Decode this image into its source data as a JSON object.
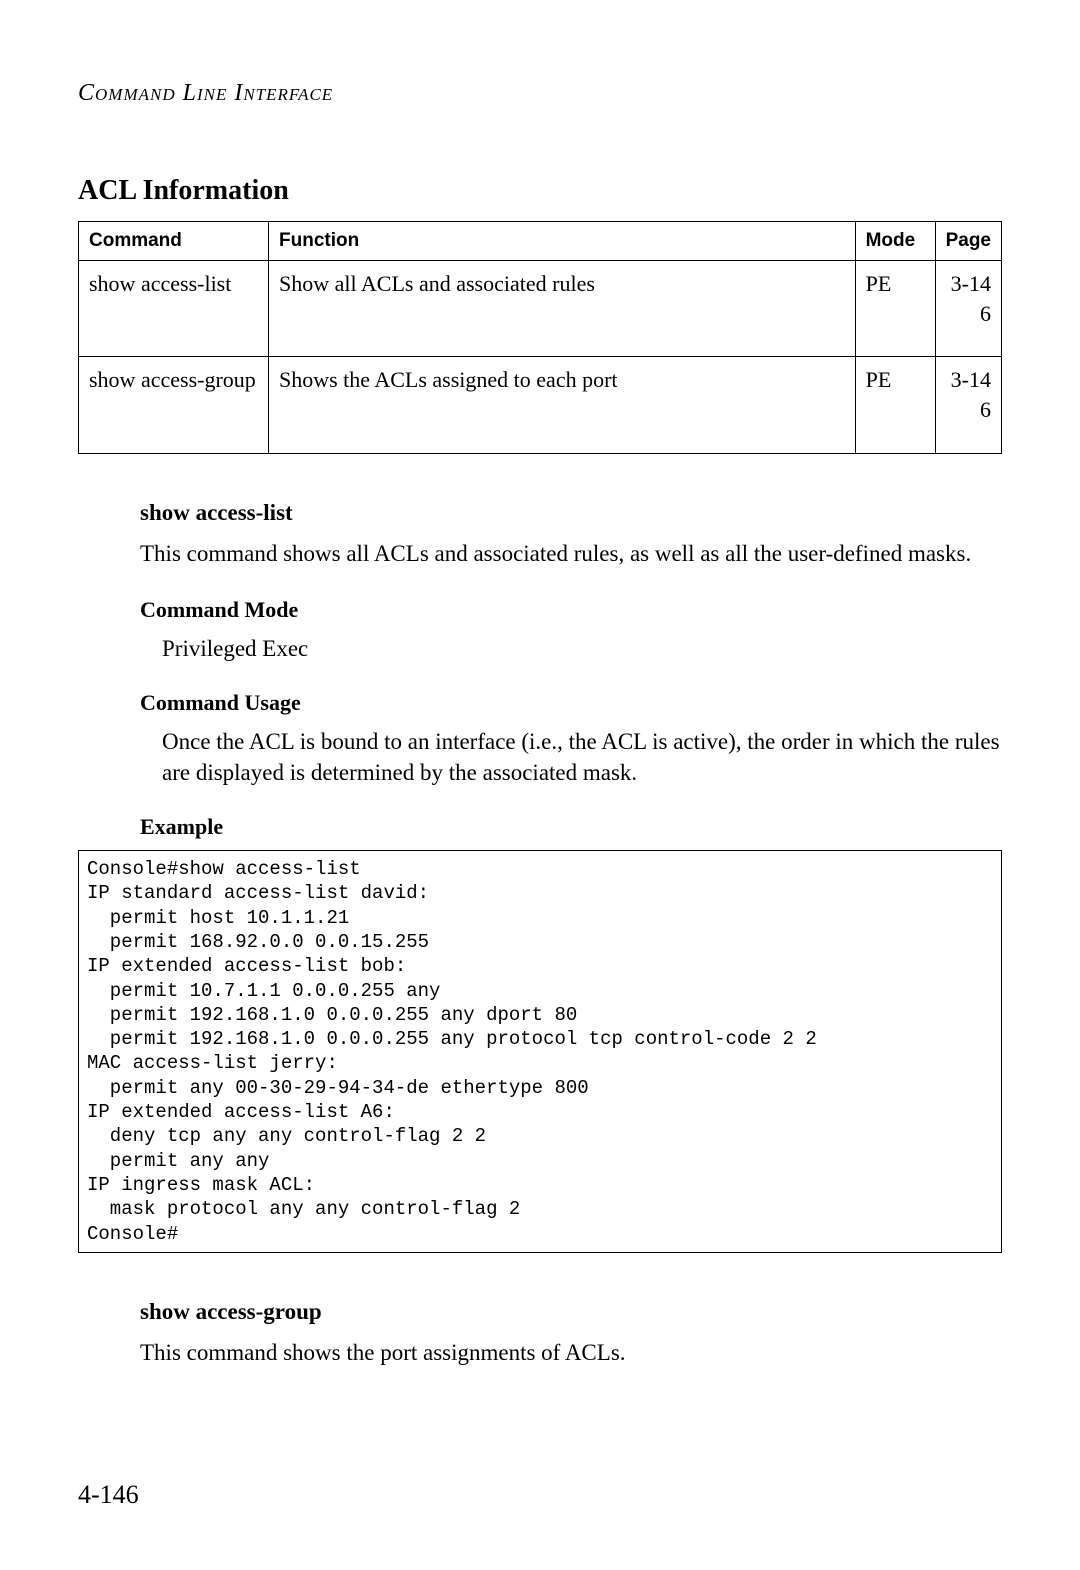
{
  "header": {
    "running_title": "Command Line Interface"
  },
  "section": {
    "title": "ACL Information"
  },
  "table": {
    "columns": [
      "Command",
      "Function",
      "Mode",
      "Page"
    ],
    "rows": [
      {
        "command": "show access-list",
        "function": "Show all ACLs and associated rules",
        "mode": "PE",
        "page": "3-14 6"
      },
      {
        "command": "show access-group",
        "function": "Shows the ACLs assigned to each port",
        "mode": "PE",
        "page": "3-14 6"
      }
    ]
  },
  "cmd1": {
    "name": "show access-list",
    "description": "This command shows all ACLs and associated rules, as well as all the user-defined masks.",
    "mode_heading": "Command Mode",
    "mode_value": "Privileged Exec",
    "usage_heading": "Command Usage",
    "usage_text": "Once the ACL is bound to an interface (i.e., the ACL is active), the order in which the rules are displayed is determined by the associated mask.",
    "example_heading": "Example",
    "example_code": "Console#show access-list\nIP standard access-list david:\n  permit host 10.1.1.21\n  permit 168.92.0.0 0.0.15.255\nIP extended access-list bob:\n  permit 10.7.1.1 0.0.0.255 any\n  permit 192.168.1.0 0.0.0.255 any dport 80\n  permit 192.168.1.0 0.0.0.255 any protocol tcp control-code 2 2\nMAC access-list jerry:\n  permit any 00-30-29-94-34-de ethertype 800\nIP extended access-list A6:\n  deny tcp any any control-flag 2 2\n  permit any any\nIP ingress mask ACL:\n  mask protocol any any control-flag 2\nConsole#"
  },
  "cmd2": {
    "name": "show access-group",
    "description": "This command shows the port assignments of ACLs."
  },
  "footer": {
    "page_number": "4-146"
  }
}
